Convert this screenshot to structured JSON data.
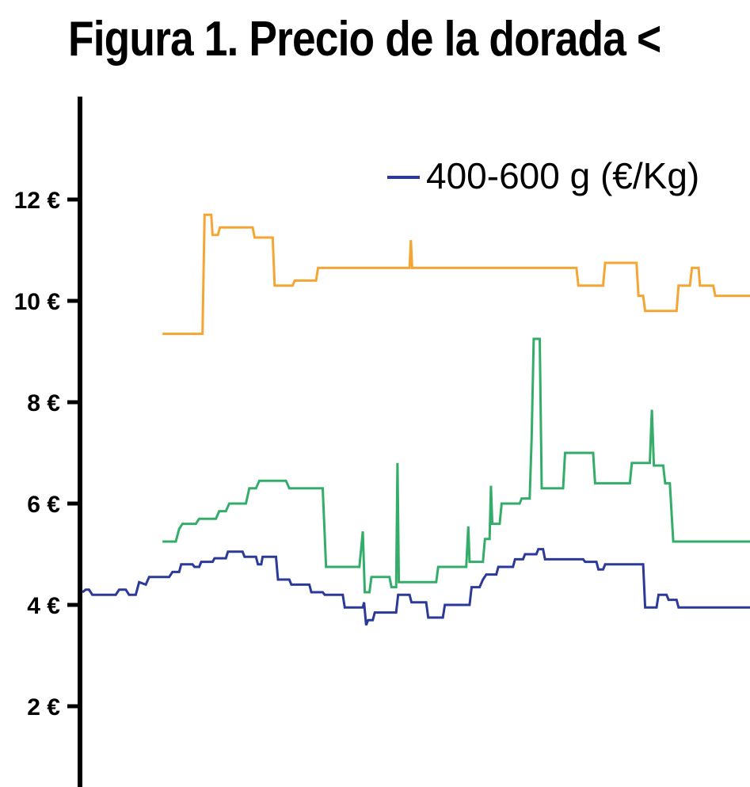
{
  "chart_data": {
    "type": "line",
    "title": "Figura 1. Precio de la dorada <",
    "xlabel": "",
    "ylabel": "",
    "ylim": [
      0,
      14
    ],
    "y_ticks": [
      2,
      4,
      6,
      8,
      10,
      12
    ],
    "y_tick_labels": [
      "2 €",
      "4 €",
      "6 €",
      "8 €",
      "10 €",
      "12 €"
    ],
    "grid": false,
    "legend": {
      "placement": "top-right",
      "entries": [
        "400-600 g (€/Kg)"
      ]
    },
    "x_range": [
      0,
      100
    ],
    "series": [
      {
        "name": "400-600 g (€/Kg)",
        "color": "#2b3a98",
        "points": [
          [
            0,
            4.25
          ],
          [
            0.5,
            4.3
          ],
          [
            1,
            4.3
          ],
          [
            1.5,
            4.2
          ],
          [
            5,
            4.2
          ],
          [
            5.5,
            4.3
          ],
          [
            6.5,
            4.3
          ],
          [
            7,
            4.2
          ],
          [
            8,
            4.2
          ],
          [
            8.5,
            4.45
          ],
          [
            9.5,
            4.4
          ],
          [
            10,
            4.55
          ],
          [
            13,
            4.55
          ],
          [
            13.5,
            4.65
          ],
          [
            14.5,
            4.65
          ],
          [
            14.8,
            4.8
          ],
          [
            16.5,
            4.8
          ],
          [
            16.8,
            4.75
          ],
          [
            17.5,
            4.75
          ],
          [
            17.8,
            4.85
          ],
          [
            19.5,
            4.85
          ],
          [
            19.8,
            4.92
          ],
          [
            21.5,
            4.92
          ],
          [
            21.8,
            5.05
          ],
          [
            24,
            5.05
          ],
          [
            24.3,
            4.95
          ],
          [
            26,
            4.95
          ],
          [
            26.3,
            4.8
          ],
          [
            26.8,
            4.8
          ],
          [
            27,
            4.95
          ],
          [
            29,
            4.95
          ],
          [
            29.3,
            4.5
          ],
          [
            31,
            4.5
          ],
          [
            31.3,
            4.4
          ],
          [
            34,
            4.4
          ],
          [
            34.3,
            4.25
          ],
          [
            36,
            4.25
          ],
          [
            36.3,
            4.2
          ],
          [
            39,
            4.2
          ],
          [
            39.3,
            3.95
          ],
          [
            42,
            3.95
          ],
          [
            42.2,
            4.05
          ],
          [
            42.5,
            3.6
          ],
          [
            42.8,
            3.7
          ],
          [
            43.5,
            3.7
          ],
          [
            43.8,
            3.85
          ],
          [
            47,
            3.85
          ],
          [
            47.3,
            4.2
          ],
          [
            49,
            4.2
          ],
          [
            49.3,
            4.05
          ],
          [
            51.5,
            4.05
          ],
          [
            51.8,
            3.75
          ],
          [
            54,
            3.75
          ],
          [
            54.3,
            4.0
          ],
          [
            58,
            4.0
          ],
          [
            58.3,
            4.35
          ],
          [
            59.5,
            4.35
          ],
          [
            60,
            4.5
          ],
          [
            60.5,
            4.6
          ],
          [
            62,
            4.6
          ],
          [
            62.3,
            4.75
          ],
          [
            64.5,
            4.75
          ],
          [
            64.8,
            4.9
          ],
          [
            66,
            4.9
          ],
          [
            66.3,
            5.0
          ],
          [
            68,
            5.0
          ],
          [
            68.3,
            5.1
          ],
          [
            69,
            5.1
          ],
          [
            69.3,
            4.9
          ],
          [
            75,
            4.9
          ],
          [
            75.3,
            4.85
          ],
          [
            77,
            4.85
          ],
          [
            77.3,
            4.7
          ],
          [
            78,
            4.7
          ],
          [
            78.3,
            4.8
          ],
          [
            84,
            4.8
          ],
          [
            84.3,
            3.95
          ],
          [
            86,
            3.95
          ],
          [
            86.3,
            4.2
          ],
          [
            87.5,
            4.2
          ],
          [
            87.8,
            4.1
          ],
          [
            89,
            4.1
          ],
          [
            89.3,
            3.95
          ],
          [
            100,
            3.95
          ]
        ]
      },
      {
        "name": "",
        "color": "#35ad6a",
        "points": [
          [
            12,
            5.25
          ],
          [
            14,
            5.25
          ],
          [
            14.5,
            5.5
          ],
          [
            15,
            5.6
          ],
          [
            17,
            5.6
          ],
          [
            17.5,
            5.7
          ],
          [
            20,
            5.7
          ],
          [
            20.5,
            5.85
          ],
          [
            21.5,
            5.85
          ],
          [
            22,
            6.0
          ],
          [
            24.5,
            6.0
          ],
          [
            25,
            6.3
          ],
          [
            26,
            6.3
          ],
          [
            26.5,
            6.45
          ],
          [
            30.5,
            6.45
          ],
          [
            31,
            6.3
          ],
          [
            36,
            6.3
          ],
          [
            36.5,
            4.75
          ],
          [
            41.5,
            4.75
          ],
          [
            42,
            5.45
          ],
          [
            42.3,
            4.25
          ],
          [
            43,
            4.25
          ],
          [
            43.3,
            4.55
          ],
          [
            46,
            4.55
          ],
          [
            46.3,
            4.35
          ],
          [
            47,
            4.35
          ],
          [
            47.2,
            6.8
          ],
          [
            47.4,
            4.45
          ],
          [
            53,
            4.45
          ],
          [
            53.3,
            4.75
          ],
          [
            57.5,
            4.75
          ],
          [
            57.8,
            5.55
          ],
          [
            58,
            4.85
          ],
          [
            60,
            4.85
          ],
          [
            60.3,
            5.3
          ],
          [
            61,
            5.3
          ],
          [
            61.2,
            6.35
          ],
          [
            61.4,
            5.6
          ],
          [
            62.5,
            5.6
          ],
          [
            62.8,
            6.0
          ],
          [
            65.5,
            6.0
          ],
          [
            65.8,
            6.1
          ],
          [
            67,
            6.1
          ],
          [
            67.3,
            7.3
          ],
          [
            67.6,
            9.25
          ],
          [
            68.5,
            9.25
          ],
          [
            68.8,
            6.3
          ],
          [
            72,
            6.3
          ],
          [
            72.3,
            7.0
          ],
          [
            76.5,
            7.0
          ],
          [
            76.8,
            6.4
          ],
          [
            82,
            6.4
          ],
          [
            82.3,
            6.8
          ],
          [
            85,
            6.8
          ],
          [
            85.3,
            7.85
          ],
          [
            85.6,
            6.75
          ],
          [
            87,
            6.75
          ],
          [
            87.3,
            6.4
          ],
          [
            88,
            6.4
          ],
          [
            88.5,
            5.25
          ],
          [
            100,
            5.25
          ]
        ]
      },
      {
        "name": "",
        "color": "#f5a534",
        "points": [
          [
            12,
            9.35
          ],
          [
            18,
            9.35
          ],
          [
            18.3,
            11.7
          ],
          [
            19.3,
            11.7
          ],
          [
            19.5,
            11.3
          ],
          [
            20.3,
            11.3
          ],
          [
            20.6,
            11.45
          ],
          [
            25.5,
            11.45
          ],
          [
            25.8,
            11.25
          ],
          [
            28.5,
            11.25
          ],
          [
            28.8,
            10.3
          ],
          [
            31.5,
            10.3
          ],
          [
            31.8,
            10.4
          ],
          [
            35,
            10.4
          ],
          [
            35.3,
            10.65
          ],
          [
            49,
            10.65
          ],
          [
            49.2,
            11.2
          ],
          [
            49.4,
            10.65
          ],
          [
            74,
            10.65
          ],
          [
            74.3,
            10.3
          ],
          [
            78,
            10.3
          ],
          [
            78.3,
            10.75
          ],
          [
            83,
            10.75
          ],
          [
            83.3,
            10.1
          ],
          [
            84,
            10.1
          ],
          [
            84.3,
            9.8
          ],
          [
            89,
            9.8
          ],
          [
            89.3,
            10.3
          ],
          [
            91,
            10.3
          ],
          [
            91.3,
            10.65
          ],
          [
            92.3,
            10.65
          ],
          [
            92.5,
            10.3
          ],
          [
            94.5,
            10.3
          ],
          [
            94.8,
            10.1
          ],
          [
            100,
            10.1
          ]
        ]
      }
    ]
  }
}
